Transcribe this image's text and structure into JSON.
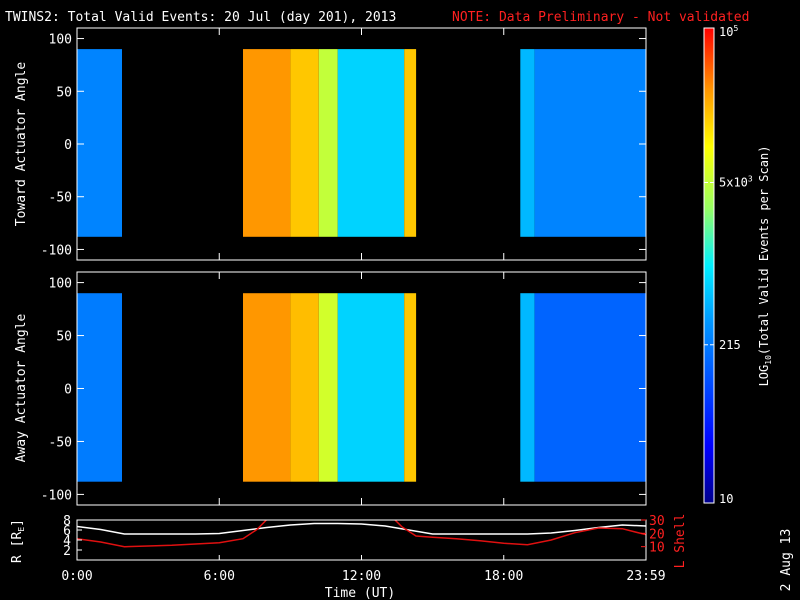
{
  "header": {
    "title": "TWINS2: Total Valid Events: 20 Jul (day 201), 2013",
    "note": "NOTE: Data Preliminary - Not validated"
  },
  "colors": {
    "background": "#000000",
    "text": "#ffffff",
    "note": "#ff2020",
    "r_line": "#ffffff",
    "lshell_line": "#e01010"
  },
  "chart_data": [
    {
      "type": "heatmap",
      "id": "toward",
      "ylabel": "Toward Actuator Angle",
      "ylim": [
        -110,
        110
      ],
      "yticks": [
        -100,
        -50,
        0,
        50,
        100
      ],
      "ytick_labels": [
        "-100",
        "-50",
        "0",
        "50",
        "100"
      ],
      "xlim": [
        0,
        24
      ],
      "data_ylim": [
        -88,
        90
      ],
      "colorscale": "log10",
      "bands": [
        {
          "start": 0.0,
          "end": 1.9,
          "value": 250
        },
        {
          "start": 7.0,
          "end": 9.0,
          "value": 30000
        },
        {
          "start": 9.0,
          "end": 10.2,
          "value": 18000
        },
        {
          "start": 10.2,
          "end": 11.0,
          "value": 5000
        },
        {
          "start": 11.0,
          "end": 13.8,
          "value": 700
        },
        {
          "start": 13.8,
          "end": 14.3,
          "value": 18000
        },
        {
          "start": 18.7,
          "end": 19.3,
          "value": 500
        },
        {
          "start": 19.3,
          "end": 24.0,
          "value": 250
        }
      ]
    },
    {
      "type": "heatmap",
      "id": "away",
      "ylabel": "Away Actuator Angle",
      "ylim": [
        -110,
        110
      ],
      "yticks": [
        -100,
        -50,
        0,
        50,
        100
      ],
      "ytick_labels": [
        "-100",
        "-50",
        "0",
        "50",
        "100"
      ],
      "xlim": [
        0,
        24
      ],
      "data_ylim": [
        -88,
        90
      ],
      "colorscale": "log10",
      "bands": [
        {
          "start": 0.0,
          "end": 1.9,
          "value": 220
        },
        {
          "start": 7.0,
          "end": 9.0,
          "value": 30000
        },
        {
          "start": 9.0,
          "end": 10.2,
          "value": 20000
        },
        {
          "start": 10.2,
          "end": 11.0,
          "value": 6000
        },
        {
          "start": 11.0,
          "end": 13.8,
          "value": 700
        },
        {
          "start": 13.8,
          "end": 14.3,
          "value": 18000
        },
        {
          "start": 18.7,
          "end": 19.3,
          "value": 500
        },
        {
          "start": 19.3,
          "end": 24.0,
          "value": 150
        }
      ]
    },
    {
      "type": "line",
      "id": "orbit",
      "xlabel": "Time (UT)",
      "xlim": [
        0,
        24
      ],
      "xticks": [
        0,
        6,
        12,
        18,
        24
      ],
      "xtick_labels": [
        "0:00",
        "6:00",
        "12:00",
        "18:00",
        "23:59"
      ],
      "ylabel_left": "R [R",
      "ylabel_left_sub": "E",
      "ylabel_left_end": "]",
      "ylim_left": [
        0,
        8
      ],
      "yticks_left": [
        "2",
        "4",
        "6",
        "8"
      ],
      "ylabel_right": "L Shell",
      "ylim_right": [
        0,
        30
      ],
      "yticks_right": [
        "10",
        "20",
        "30"
      ],
      "series": [
        {
          "name": "R",
          "axis": "left",
          "x": [
            0,
            1,
            2,
            3,
            4,
            5,
            6,
            7,
            8,
            9,
            10,
            11,
            12,
            13,
            14,
            15,
            16,
            17,
            18,
            19,
            20,
            21,
            22,
            23,
            24
          ],
          "y": [
            6.7,
            6.1,
            5.2,
            5.2,
            5.2,
            5.2,
            5.3,
            5.9,
            6.5,
            7.0,
            7.3,
            7.3,
            7.2,
            6.8,
            6.0,
            5.2,
            5.2,
            5.2,
            5.2,
            5.2,
            5.4,
            5.9,
            6.5,
            7.0,
            6.8
          ]
        },
        {
          "name": "L Shell",
          "axis": "right",
          "x": [
            0,
            1,
            2,
            3,
            4,
            5,
            6,
            7,
            7.6,
            8.1,
            13.3,
            13.7,
            14.3,
            15,
            16,
            17,
            18,
            19,
            20,
            21,
            22,
            23,
            24
          ],
          "y": [
            16,
            13.5,
            10,
            10.5,
            11,
            12,
            13,
            16,
            23,
            32,
            32,
            25,
            18,
            17,
            16,
            14.5,
            12.5,
            11.5,
            15,
            20.5,
            24,
            23.5,
            19
          ]
        }
      ]
    }
  ],
  "colorbar": {
    "label": "LOG",
    "label_sub": "10",
    "label_end": "(Total Valid Events per Scan)",
    "min": 10,
    "max": 100000,
    "ticks": [
      {
        "value": 100000,
        "base": "10",
        "sup": "5"
      },
      {
        "value": 5000,
        "base": "5x10",
        "sup": "3"
      },
      {
        "value": 215,
        "base": "215",
        "sup": ""
      },
      {
        "value": 10,
        "base": "10",
        "sup": ""
      }
    ]
  },
  "footer": {
    "date": "2 Aug 13"
  }
}
